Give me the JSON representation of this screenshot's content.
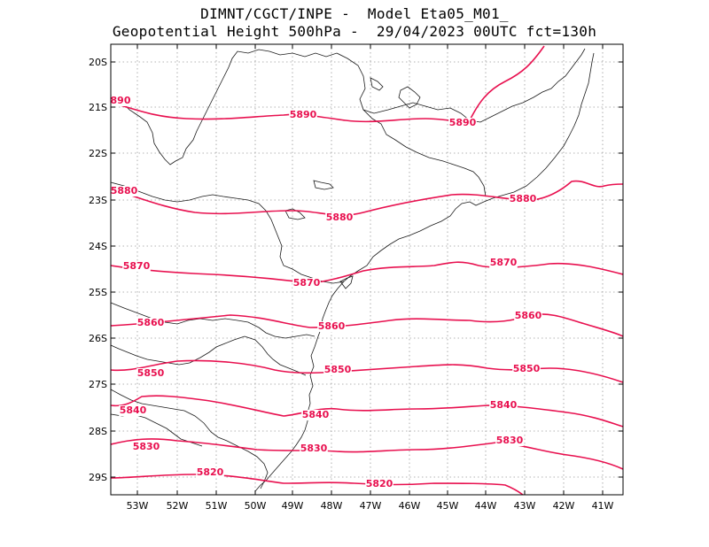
{
  "title": {
    "line1": "DIMNT/CGCT/INPE -  Model Eta05_M01_",
    "line2": "Geopotential Height 500hPa -  29/04/2023 00UTC fct=130h"
  },
  "colors": {
    "contour": "#e8104f",
    "coast": "#1a1a1a",
    "grid": "#9a9a9a"
  },
  "axes": {
    "lat_labels": [
      "20S",
      "21S",
      "22S",
      "23S",
      "24S",
      "25S",
      "26S",
      "27S",
      "28S",
      "29S"
    ],
    "lon_labels": [
      "53W",
      "52W",
      "51W",
      "50W",
      "49W",
      "48W",
      "47W",
      "46W",
      "45W",
      "44W",
      "43W",
      "42W",
      "41W"
    ]
  },
  "contours": [
    {
      "value": 5890,
      "labels": [
        "890",
        "5890",
        "5890"
      ]
    },
    {
      "value": 5880,
      "labels": [
        "5880",
        "5880",
        "5880"
      ]
    },
    {
      "value": 5870,
      "labels": [
        "5870",
        "5870",
        "5870"
      ]
    },
    {
      "value": 5860,
      "labels": [
        "5860",
        "5860",
        "5860"
      ]
    },
    {
      "value": 5850,
      "labels": [
        "5850",
        "5850",
        "5850"
      ]
    },
    {
      "value": 5840,
      "labels": [
        "5840",
        "5840",
        "5840"
      ]
    },
    {
      "value": 5830,
      "labels": [
        "5830",
        "5830",
        "5830"
      ]
    },
    {
      "value": 5820,
      "labels": [
        "5820",
        "5820"
      ]
    }
  ]
}
